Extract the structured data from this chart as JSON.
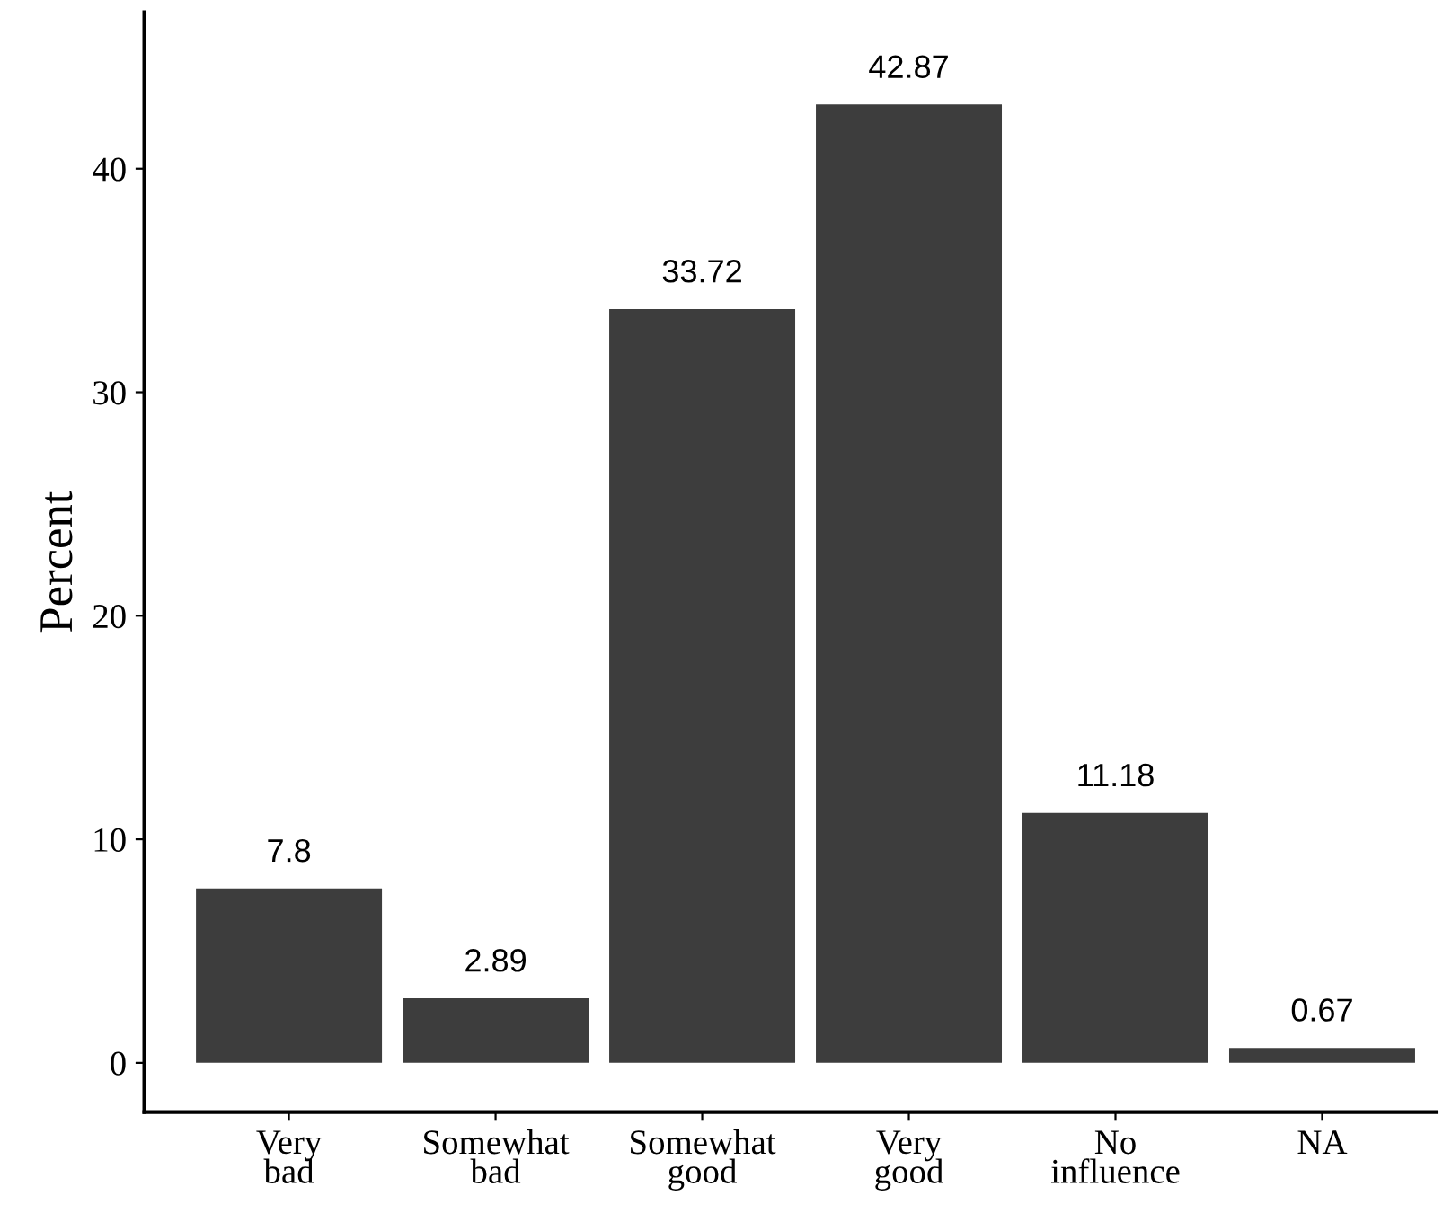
{
  "chart_data": {
    "type": "bar",
    "ylabel": "Percent",
    "categories": [
      "Very\nbad",
      "Somewhat\nbad",
      "Somewhat\ngood",
      "Very\ngood",
      "No\ninfluence",
      "NA"
    ],
    "values": [
      7.8,
      2.89,
      33.72,
      42.87,
      11.18,
      0.67
    ],
    "color": "#3d3d3d",
    "ylim": [
      -2.2,
      47
    ],
    "yticks": [
      0,
      10,
      20,
      30,
      40
    ],
    "grid": false,
    "data_labels": true
  }
}
